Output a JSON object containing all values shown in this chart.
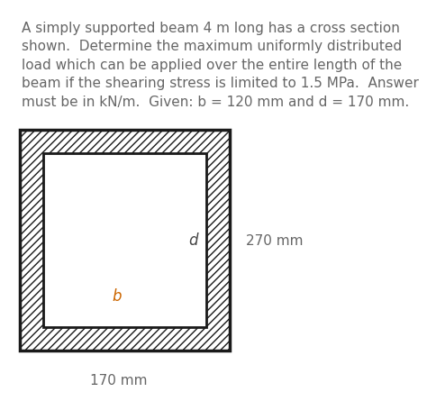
{
  "title_text": "A simply supported beam 4 m long has a cross section\nshown.  Determine the maximum uniformly distributed\nload which can be applied over the entire length of the\nbeam if the shearing stress is limited to 1.5 MPa.  Answer\nmust be in kN/m.  Given: b = 120 mm and d = 170 mm.",
  "title_fontsize": 11.0,
  "title_color": "#666666",
  "bg_color": "#ffffff",
  "hatch_color": "#888888",
  "outer_border_color": "#1a1a1a",
  "inner_border_color": "#1a1a1a",
  "label_b": "b",
  "label_d": "d",
  "label_270": "270 mm",
  "label_170": "170 mm",
  "label_b_color": "#cc6600",
  "label_d_color": "#444444",
  "label_color": "#666666",
  "label_fontsize": 11
}
